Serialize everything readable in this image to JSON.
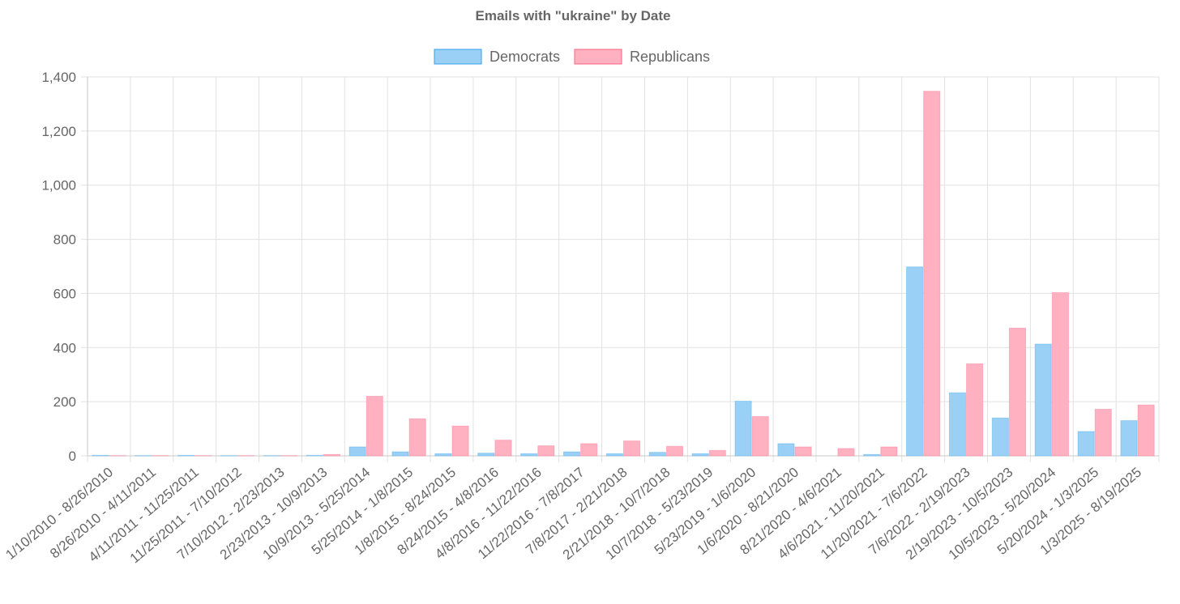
{
  "chart_data": {
    "type": "bar",
    "title": "Emails with \"ukraine\" by Date",
    "legend_position": "top-center",
    "grid": true,
    "ylim": [
      0,
      1400
    ],
    "y_ticks": [
      "0",
      "200",
      "400",
      "600",
      "800",
      "1,000",
      "1,200",
      "1,400"
    ],
    "y_tick_values": [
      0,
      200,
      400,
      600,
      800,
      1000,
      1200,
      1400
    ],
    "categories": [
      "1/10/2010 - 8/26/2010",
      "8/26/2010 - 4/11/2011",
      "4/11/2011 - 11/25/2011",
      "11/25/2011 - 7/10/2012",
      "7/10/2012 - 2/23/2013",
      "2/23/2013 - 10/9/2013",
      "10/9/2013 - 5/25/2014",
      "5/25/2014 - 1/8/2015",
      "1/8/2015 - 8/24/2015",
      "8/24/2015 - 4/8/2016",
      "4/8/2016 - 11/22/2016",
      "11/22/2016 - 7/8/2017",
      "7/8/2017 - 2/21/2018",
      "2/21/2018 - 10/7/2018",
      "10/7/2018 - 5/23/2019",
      "5/23/2019 - 1/6/2020",
      "1/6/2020 - 8/21/2020",
      "8/21/2020 - 4/6/2021",
      "4/6/2021 - 11/20/2021",
      "11/20/2021 - 7/6/2022",
      "7/6/2022 - 2/19/2023",
      "2/19/2023 - 10/5/2023",
      "10/5/2023 - 5/20/2024",
      "5/20/2024 - 1/3/2025",
      "1/3/2025 - 8/19/2025"
    ],
    "series": [
      {
        "name": "Democrats",
        "fill": "#9ad0f5",
        "stroke": "#36a2eb",
        "values": [
          2,
          1,
          2,
          1,
          1,
          2,
          33,
          15,
          8,
          10,
          8,
          15,
          8,
          13,
          8,
          202,
          45,
          0,
          5,
          698,
          233,
          140,
          413,
          90,
          130
        ]
      },
      {
        "name": "Republicans",
        "fill": "#ffb1c1",
        "stroke": "#ff6384",
        "values": [
          1,
          1,
          1,
          1,
          1,
          5,
          220,
          137,
          110,
          58,
          37,
          45,
          55,
          35,
          20,
          145,
          33,
          27,
          33,
          1347,
          340,
          472,
          603,
          172,
          188
        ]
      }
    ]
  }
}
